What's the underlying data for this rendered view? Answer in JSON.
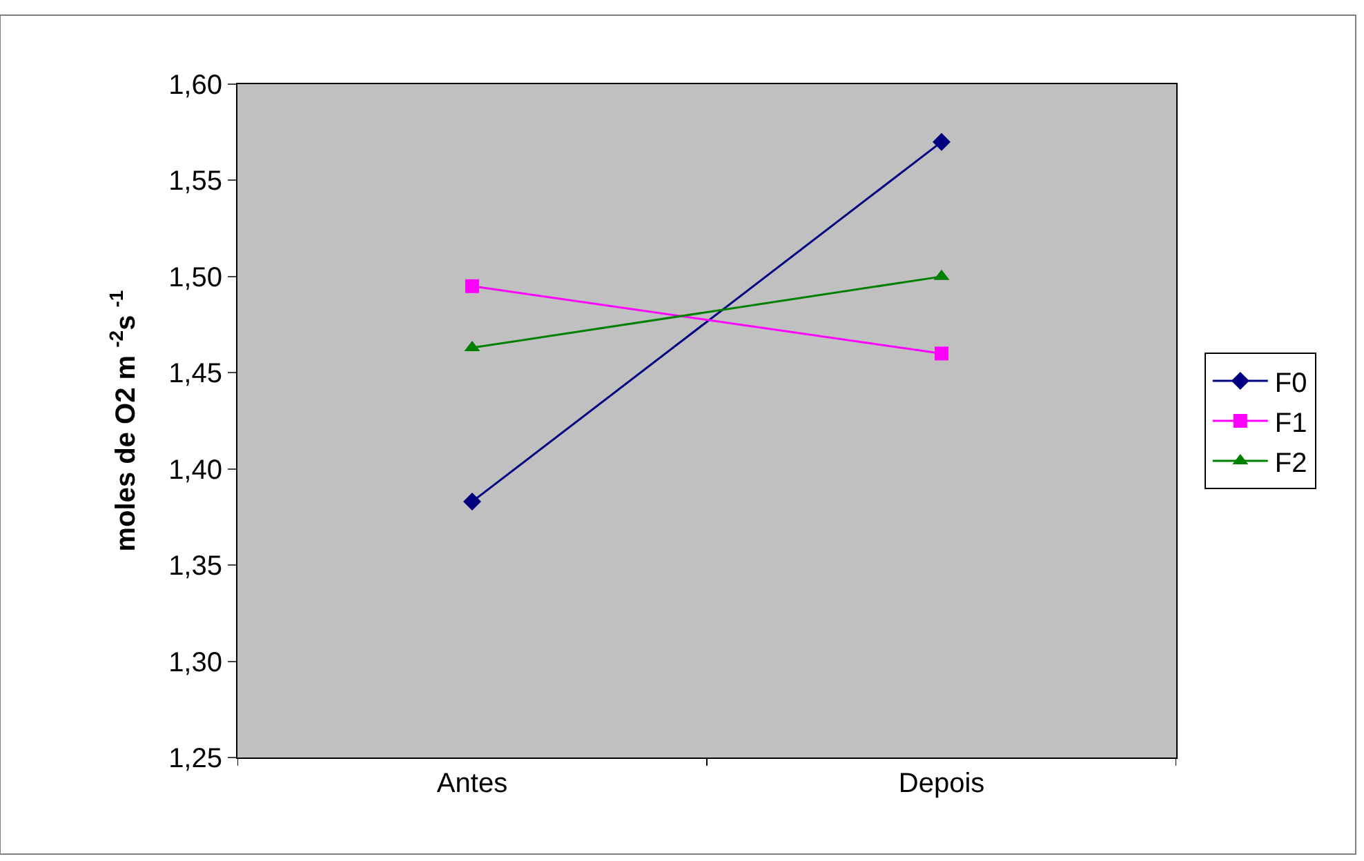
{
  "chart_data": {
    "type": "line",
    "ylabel": "moles de O2 m $^{-2}$s $^{-1}$",
    "categories": [
      "Antes",
      "Depois"
    ],
    "series": [
      {
        "name": "F0",
        "color": "#000080",
        "marker": "diamond",
        "values": [
          1.383,
          1.57
        ]
      },
      {
        "name": "F1",
        "color": "#ff00ff",
        "marker": "square",
        "values": [
          1.495,
          1.46
        ]
      },
      {
        "name": "F2",
        "color": "#008000",
        "marker": "triangle",
        "values": [
          1.463,
          1.5
        ]
      }
    ],
    "ylim": [
      1.25,
      1.6
    ],
    "yticks": [
      {
        "value": 1.25,
        "label": "1,25"
      },
      {
        "value": 1.3,
        "label": "1,30"
      },
      {
        "value": 1.35,
        "label": "1,35"
      },
      {
        "value": 1.4,
        "label": "1,40"
      },
      {
        "value": 1.45,
        "label": "1,45"
      },
      {
        "value": 1.5,
        "label": "1,50"
      },
      {
        "value": 1.55,
        "label": "1,55"
      },
      {
        "value": 1.6,
        "label": "1,60"
      }
    ],
    "grid": false,
    "legend": "right",
    "line_style": "solid"
  }
}
